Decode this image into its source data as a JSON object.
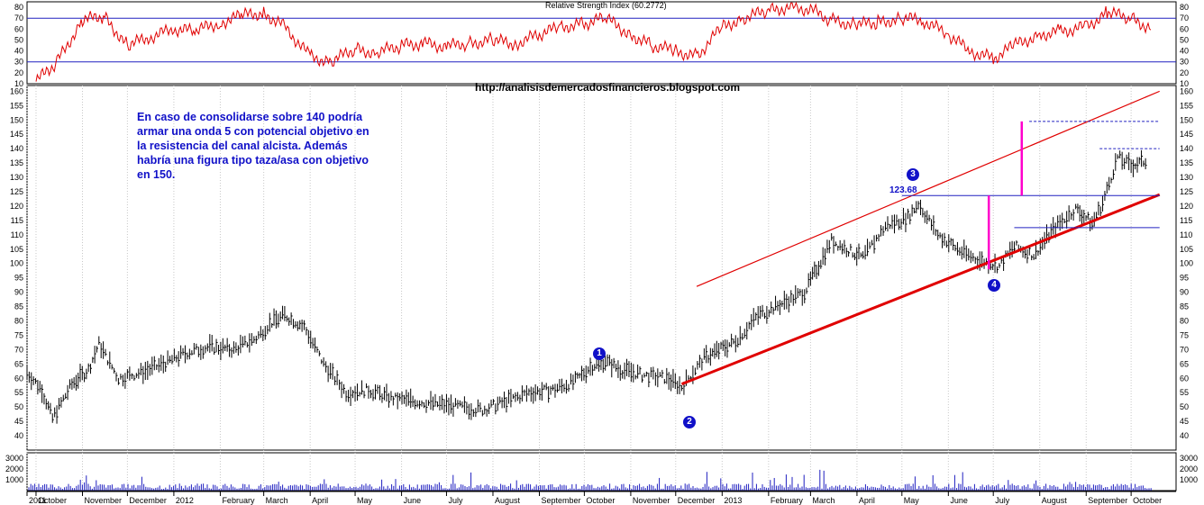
{
  "chart_data": [
    {
      "type": "line",
      "title": "Relative Strength Index (60.2772)",
      "ylim": [
        10,
        85
      ],
      "y_ticks": [
        10,
        20,
        30,
        40,
        50,
        60,
        70,
        80
      ],
      "reference_lines": [
        30,
        70
      ],
      "series": [
        {
          "color": "#e00000",
          "x": [
            "2011-10-01",
            "2011-10-15",
            "2011-11-01",
            "2011-11-15",
            "2011-12-01",
            "2011-12-15",
            "2012-01-01",
            "2012-01-15",
            "2012-02-01",
            "2012-02-15",
            "2012-03-01",
            "2012-03-15",
            "2012-04-01",
            "2012-04-15",
            "2012-05-01",
            "2012-05-15",
            "2012-06-01",
            "2012-06-15",
            "2012-07-01",
            "2012-07-15",
            "2012-08-01",
            "2012-08-15",
            "2012-09-01",
            "2012-09-15",
            "2012-10-01",
            "2012-10-15",
            "2012-11-01",
            "2012-11-15",
            "2012-12-01",
            "2012-12-15",
            "2013-01-01",
            "2013-01-15",
            "2013-02-01",
            "2013-02-15",
            "2013-03-01",
            "2013-03-15",
            "2013-04-01",
            "2013-04-15",
            "2013-05-01",
            "2013-05-15",
            "2013-06-01",
            "2013-06-15",
            "2013-07-01",
            "2013-07-15",
            "2013-08-01",
            "2013-08-15",
            "2013-09-01",
            "2013-09-15",
            "2013-10-01",
            "2013-10-15"
          ],
          "values": [
            12,
            30,
            68,
            72,
            45,
            52,
            60,
            58,
            66,
            72,
            75,
            62,
            35,
            30,
            42,
            38,
            45,
            47,
            44,
            47,
            50,
            46,
            55,
            62,
            65,
            70,
            55,
            45,
            40,
            35,
            62,
            70,
            77,
            80,
            78,
            68,
            64,
            66,
            70,
            68,
            55,
            40,
            33,
            45,
            55,
            58,
            62,
            75,
            70,
            60
          ]
        }
      ]
    },
    {
      "type": "line",
      "title": "",
      "source_url": "http://analisisdemercadosfinancieros.blogspot.com",
      "ylim": [
        35,
        162
      ],
      "y_ticks": [
        40,
        45,
        50,
        55,
        60,
        65,
        70,
        75,
        80,
        85,
        90,
        95,
        100,
        105,
        110,
        115,
        120,
        125,
        130,
        135,
        140,
        145,
        150,
        155,
        160
      ],
      "series": [
        {
          "name": "",
          "color": "#000000",
          "x": [
            "2011-09-25",
            "2011-10-05",
            "2011-10-12",
            "2011-10-25",
            "2011-11-05",
            "2011-11-12",
            "2011-11-25",
            "2011-12-10",
            "2011-12-25",
            "2012-01-10",
            "2012-01-25",
            "2012-02-10",
            "2012-02-25",
            "2012-03-05",
            "2012-03-15",
            "2012-03-28",
            "2012-04-10",
            "2012-04-25",
            "2012-05-10",
            "2012-05-25",
            "2012-06-10",
            "2012-06-25",
            "2012-07-10",
            "2012-07-25",
            "2012-08-10",
            "2012-08-25",
            "2012-09-10",
            "2012-09-25",
            "2012-10-05",
            "2012-10-15",
            "2012-10-25",
            "2012-11-10",
            "2012-11-25",
            "2012-12-05",
            "2012-12-20",
            "2013-01-10",
            "2013-01-25",
            "2013-02-10",
            "2013-02-25",
            "2013-03-05",
            "2013-03-15",
            "2013-03-25",
            "2013-04-05",
            "2013-04-20",
            "2013-05-05",
            "2013-05-12",
            "2013-05-25",
            "2013-06-10",
            "2013-06-22",
            "2013-07-05",
            "2013-07-15",
            "2013-07-28",
            "2013-08-10",
            "2013-08-25",
            "2013-09-05",
            "2013-09-12",
            "2013-09-22",
            "2013-10-01",
            "2013-10-12"
          ],
          "values": [
            62,
            56,
            46,
            58,
            63,
            72,
            60,
            62,
            65,
            69,
            71,
            70,
            74,
            79,
            82,
            78,
            65,
            55,
            56,
            53,
            52,
            51,
            50,
            49,
            52,
            55,
            56,
            59,
            64,
            66,
            63,
            61,
            60,
            57,
            67,
            73,
            82,
            86,
            90,
            98,
            108,
            105,
            102,
            113,
            116,
            121,
            110,
            104,
            101,
            99,
            106,
            103,
            112,
            119,
            114,
            121,
            137,
            134,
            136
          ]
        }
      ],
      "trendlines": [
        {
          "from_x": "2012-12-05",
          "from_y": 58,
          "to_x": "2013-10-20",
          "to_y": 124,
          "color": "#e00000",
          "width": "thick"
        },
        {
          "from_x": "2012-12-15",
          "from_y": 92,
          "to_x": "2013-10-20",
          "to_y": 160,
          "color": "#e00000",
          "width": "thin"
        }
      ],
      "horizontal_lines": [
        {
          "y": 123.68,
          "from_x": "2013-05-01",
          "to_x": "2013-10-20",
          "color": "#2020c0",
          "style": "solid"
        },
        {
          "y": 112.5,
          "from_x": "2013-07-15",
          "to_x": "2013-10-20",
          "color": "#2020c0",
          "style": "solid"
        },
        {
          "y": 149.5,
          "from_x": "2013-07-25",
          "to_x": "2013-10-20",
          "color": "#2020c0",
          "style": "dashed"
        },
        {
          "y": 140,
          "from_x": "2013-09-10",
          "to_x": "2013-10-20",
          "color": "#2020c0",
          "style": "dashed"
        }
      ],
      "vertical_segments": [
        {
          "x": "2013-06-28",
          "y1": 98,
          "y2": 123.68,
          "color": "#ff00cc"
        },
        {
          "x": "2013-07-20",
          "y1": 123.68,
          "y2": 149.5,
          "color": "#ff00cc"
        }
      ],
      "wave_labels": [
        {
          "label": "1",
          "x": "2012-10-07",
          "y": 69
        },
        {
          "label": "2",
          "x": "2012-12-05",
          "y": 55.5
        },
        {
          "label": "3",
          "x": "2013-05-12",
          "y": 132
        },
        {
          "label": "4",
          "x": "2013-07-01",
          "y": 94
        }
      ],
      "peak_label": "123.68",
      "annotation": "En caso de consolidarse sobre 140 podría armar una onda 5 con potencial objetivo en la resistencia del canal alcista. Además habría una figura tipo taza/asa con objetivo en 150."
    },
    {
      "type": "bar",
      "title": "",
      "ylim": [
        0,
        3500
      ],
      "y_ticks": [
        1000,
        2000,
        3000
      ]
    }
  ],
  "x_axis": {
    "start_date": "2011-09-25",
    "end_date": "2013-10-31",
    "month_labels": [
      {
        "label": "2011",
        "date": "2011-09-25"
      },
      {
        "label": "October",
        "date": "2011-10-01"
      },
      {
        "label": "November",
        "date": "2011-11-01"
      },
      {
        "label": "December",
        "date": "2011-12-01"
      },
      {
        "label": "2012",
        "date": "2012-01-01"
      },
      {
        "label": "February",
        "date": "2012-02-01"
      },
      {
        "label": "March",
        "date": "2012-03-01"
      },
      {
        "label": "April",
        "date": "2012-04-01"
      },
      {
        "label": "May",
        "date": "2012-05-01"
      },
      {
        "label": "June",
        "date": "2012-06-01"
      },
      {
        "label": "July",
        "date": "2012-07-01"
      },
      {
        "label": "August",
        "date": "2012-08-01"
      },
      {
        "label": "September",
        "date": "2012-09-01"
      },
      {
        "label": "October",
        "date": "2012-10-01"
      },
      {
        "label": "November",
        "date": "2012-11-01"
      },
      {
        "label": "December",
        "date": "2012-12-01"
      },
      {
        "label": "2013",
        "date": "2013-01-01"
      },
      {
        "label": "February",
        "date": "2013-02-01"
      },
      {
        "label": "March",
        "date": "2013-03-01"
      },
      {
        "label": "April",
        "date": "2013-04-01"
      },
      {
        "label": "May",
        "date": "2013-05-01"
      },
      {
        "label": "June",
        "date": "2013-06-01"
      },
      {
        "label": "July",
        "date": "2013-07-01"
      },
      {
        "label": "August",
        "date": "2013-08-01"
      },
      {
        "label": "September",
        "date": "2013-09-01"
      },
      {
        "label": "October",
        "date": "2013-10-01"
      }
    ]
  }
}
